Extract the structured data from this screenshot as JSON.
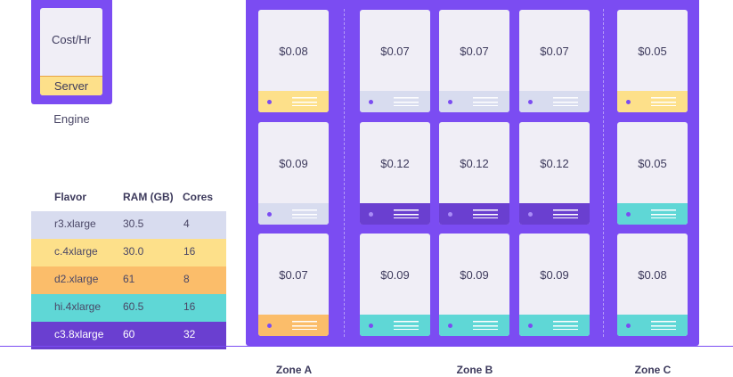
{
  "colors": {
    "accent": "#7b4cf2",
    "card": "#f0eef6",
    "r3": "#d8dcef",
    "c4": "#fde08a",
    "d2": "#fbbd6a",
    "hi": "#5fd7d6",
    "c38": "#6a3fd0"
  },
  "legend": {
    "cost_label": "Cost/Hr",
    "server_label": "Server",
    "caption": "Engine"
  },
  "flavor_table": {
    "headers": [
      "Flavor",
      "RAM (GB)",
      "Cores"
    ],
    "rows": [
      {
        "flavor": "r3.xlarge",
        "ram": "30.5",
        "cores": "4",
        "color": "#d8dcef"
      },
      {
        "flavor": "c.4xlarge",
        "ram": "30.0",
        "cores": "16",
        "color": "#fde08a"
      },
      {
        "flavor": "d2.xlarge",
        "ram": "61",
        "cores": "8",
        "color": "#fbbd6a"
      },
      {
        "flavor": "hi.4xlarge",
        "ram": "60.5",
        "cores": "16",
        "color": "#5fd7d6"
      },
      {
        "flavor": "c3.8xlarge",
        "ram": "60",
        "cores": "32",
        "color": "#6a3fd0"
      }
    ]
  },
  "zones": [
    {
      "name": "Zone A",
      "columns": [
        [
          {
            "price": "$0.08",
            "flavor": "c4"
          },
          {
            "price": "$0.09",
            "flavor": "r3"
          },
          {
            "price": "$0.07",
            "flavor": "d2"
          }
        ]
      ]
    },
    {
      "name": "Zone B",
      "columns": [
        [
          {
            "price": "$0.07",
            "flavor": "r3"
          },
          {
            "price": "$0.12",
            "flavor": "c38"
          },
          {
            "price": "$0.09",
            "flavor": "hi"
          }
        ],
        [
          {
            "price": "$0.07",
            "flavor": "r3"
          },
          {
            "price": "$0.12",
            "flavor": "c38"
          },
          {
            "price": "$0.09",
            "flavor": "hi"
          }
        ],
        [
          {
            "price": "$0.07",
            "flavor": "r3"
          },
          {
            "price": "$0.12",
            "flavor": "c38"
          },
          {
            "price": "$0.09",
            "flavor": "hi"
          }
        ]
      ]
    },
    {
      "name": "Zone C",
      "columns": [
        [
          {
            "price": "$0.05",
            "flavor": "c4"
          },
          {
            "price": "$0.05",
            "flavor": "hi"
          },
          {
            "price": "$0.08",
            "flavor": "hi"
          }
        ]
      ]
    }
  ]
}
